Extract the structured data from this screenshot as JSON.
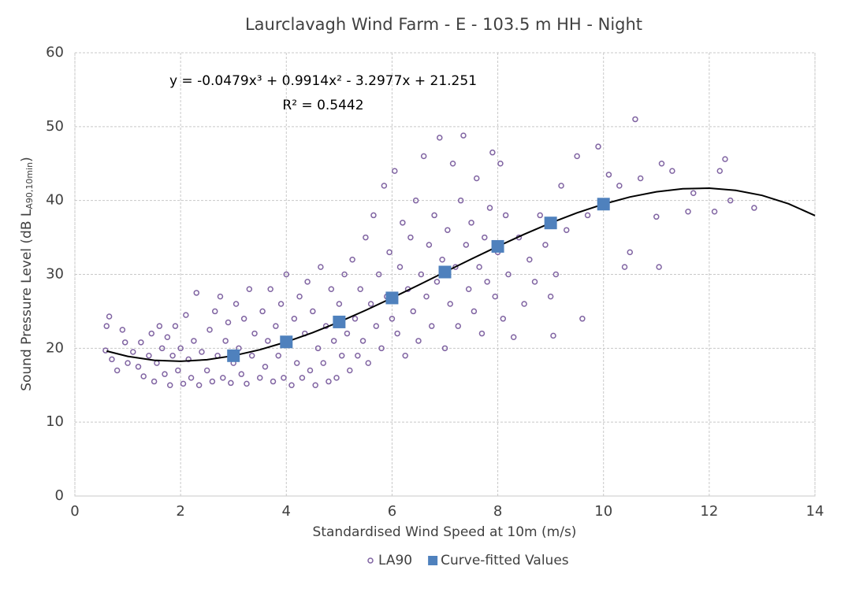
{
  "chart_data": {
    "type": "scatter",
    "title": "Laurclavagh Wind Farm - E - 103.5 m HH - Night",
    "xlabel": "Standardised Wind Speed at 10m (m/s)",
    "ylabel": [
      "Sound Pressure Level (dB L",
      "A90,10min",
      ")"
    ],
    "equation": "y = -0.0479x³ + 0.9914x² - 3.2977x + 21.251",
    "r_squared": "R² = 0.5442",
    "xlim": [
      0,
      14
    ],
    "xticks": [
      0,
      2,
      4,
      6,
      8,
      10,
      12,
      14
    ],
    "ylim": [
      0,
      60
    ],
    "yticks": [
      0,
      10,
      20,
      30,
      40,
      50,
      60
    ],
    "grid": true,
    "legend": "bottom",
    "series": [
      {
        "name": "LA90",
        "color": "#8064a2",
        "marker": "circle",
        "x": [
          0.58,
          0.6,
          0.65,
          0.7,
          0.8,
          0.9,
          0.95,
          1.0,
          1.1,
          1.2,
          1.25,
          1.3,
          1.4,
          1.45,
          1.5,
          1.55,
          1.6,
          1.65,
          1.7,
          1.75,
          1.8,
          1.85,
          1.9,
          1.95,
          2.0,
          2.05,
          2.1,
          2.15,
          2.2,
          2.25,
          2.3,
          2.35,
          2.4,
          2.5,
          2.55,
          2.6,
          2.65,
          2.7,
          2.75,
          2.8,
          2.85,
          2.9,
          2.95,
          3.0,
          3.05,
          3.1,
          3.15,
          3.2,
          3.25,
          3.3,
          3.35,
          3.4,
          3.5,
          3.55,
          3.6,
          3.65,
          3.7,
          3.75,
          3.8,
          3.85,
          3.9,
          3.95,
          4.0,
          4.05,
          4.1,
          4.15,
          4.2,
          4.25,
          4.3,
          4.35,
          4.4,
          4.45,
          4.5,
          4.55,
          4.6,
          4.65,
          4.7,
          4.75,
          4.8,
          4.85,
          4.9,
          4.95,
          5.0,
          5.05,
          5.1,
          5.15,
          5.2,
          5.25,
          5.3,
          5.35,
          5.4,
          5.45,
          5.5,
          5.55,
          5.6,
          5.65,
          5.7,
          5.75,
          5.8,
          5.85,
          5.9,
          5.95,
          6.0,
          6.05,
          6.1,
          6.15,
          6.2,
          6.25,
          6.3,
          6.35,
          6.4,
          6.45,
          6.5,
          6.55,
          6.6,
          6.65,
          6.7,
          6.75,
          6.8,
          6.85,
          6.9,
          6.95,
          7.0,
          7.05,
          7.1,
          7.15,
          7.2,
          7.25,
          7.3,
          7.35,
          7.4,
          7.45,
          7.5,
          7.55,
          7.6,
          7.65,
          7.7,
          7.75,
          7.8,
          7.85,
          7.9,
          7.95,
          8.0,
          8.05,
          8.1,
          8.15,
          8.2,
          8.3,
          8.4,
          8.5,
          8.6,
          8.7,
          8.8,
          8.9,
          9.0,
          9.05,
          9.1,
          9.2,
          9.3,
          9.5,
          9.6,
          9.7,
          9.9,
          10.1,
          10.3,
          10.4,
          10.5,
          10.6,
          10.7,
          11.0,
          11.05,
          11.1,
          11.3,
          11.6,
          11.7,
          12.1,
          12.2,
          12.3,
          12.4,
          12.85
        ],
        "values": [
          19.7,
          23,
          24.3,
          18.5,
          17,
          22.5,
          20.8,
          18,
          19.5,
          17.5,
          20.8,
          16.2,
          19,
          22,
          15.5,
          18,
          23,
          20,
          16.5,
          21.5,
          15,
          19,
          23,
          17,
          20,
          15.2,
          24.5,
          18.5,
          16,
          21,
          27.5,
          15,
          19.5,
          17,
          22.5,
          15.5,
          25,
          19,
          27,
          16,
          21,
          23.5,
          15.3,
          18,
          26,
          20,
          16.5,
          24,
          15.2,
          28,
          19,
          22,
          16,
          25,
          17.5,
          21,
          28,
          15.5,
          23,
          19,
          26,
          16,
          30,
          21,
          15,
          24,
          18,
          27,
          16,
          22,
          29,
          17,
          25,
          15,
          20,
          31,
          18,
          23,
          15.5,
          28,
          21,
          16,
          26,
          19,
          30,
          22,
          17,
          32,
          24,
          19,
          28,
          21,
          35,
          18,
          26,
          38,
          23,
          30,
          20,
          42,
          27,
          33,
          24,
          44,
          22,
          31,
          37,
          19,
          28,
          35,
          25,
          40,
          21,
          30,
          46,
          27,
          34,
          23,
          38,
          29,
          48.5,
          32,
          20,
          36,
          26,
          45,
          31,
          23,
          40,
          48.8,
          34,
          28,
          37,
          25,
          43,
          31,
          22,
          35,
          29,
          39,
          46.5,
          27,
          33,
          45,
          24,
          38,
          30,
          21.5,
          35,
          26,
          32,
          29,
          38,
          34,
          27,
          21.7,
          30,
          42,
          36,
          46,
          24,
          38,
          47.3,
          43.5,
          42,
          31,
          33,
          51,
          43,
          37.8,
          31,
          45,
          44,
          38.5,
          41,
          38.5,
          44,
          45.6,
          40,
          39
        ]
      },
      {
        "name": "Curve-fitted Values",
        "color": "#4f81bd",
        "marker": "square",
        "x": [
          3,
          4,
          5,
          6,
          7,
          8,
          9,
          10
        ],
        "values": [
          18.99,
          20.86,
          23.56,
          26.81,
          30.32,
          33.79,
          36.96,
          39.51
        ]
      }
    ],
    "trendline": {
      "color": "#000000",
      "x": [
        0.6,
        1,
        1.5,
        2,
        2.5,
        3,
        3.5,
        4,
        4.5,
        5,
        5.5,
        6,
        6.5,
        7,
        7.5,
        8,
        8.5,
        9,
        9.5,
        10,
        10.5,
        11,
        11.5,
        12,
        12.5,
        13,
        13.5,
        14
      ],
      "values": [
        19.62,
        18.9,
        18.37,
        18.24,
        18.45,
        18.99,
        19.8,
        20.86,
        22.12,
        23.56,
        25.14,
        26.81,
        28.55,
        30.32,
        32.08,
        33.79,
        35.43,
        36.96,
        38.33,
        39.51,
        40.48,
        41.18,
        41.59,
        41.67,
        41.38,
        40.69,
        39.56,
        37.96
      ]
    }
  }
}
